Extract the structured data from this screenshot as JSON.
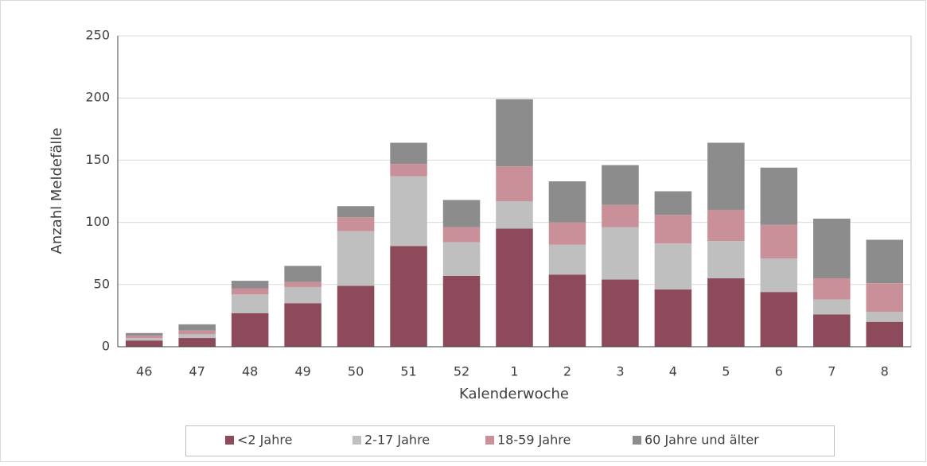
{
  "chart_data": {
    "type": "stacked_bar",
    "x_label": "Kalenderwoche",
    "y_label": "Anzahl Meldefälle",
    "categories": [
      "46",
      "47",
      "48",
      "49",
      "50",
      "51",
      "52",
      "1",
      "2",
      "3",
      "4",
      "5",
      "6",
      "7",
      "8"
    ],
    "series": [
      {
        "name": "<2 Jahre",
        "color": "#8c4a5a",
        "values": [
          5,
          7,
          27,
          35,
          49,
          81,
          57,
          95,
          58,
          54,
          46,
          55,
          44,
          26,
          20
        ]
      },
      {
        "name": "2-17 Jahre",
        "color": "#bfbfbf",
        "values": [
          2,
          3,
          15,
          13,
          44,
          56,
          27,
          22,
          24,
          42,
          37,
          30,
          27,
          12,
          8
        ]
      },
      {
        "name": "18-59 Jahre",
        "color": "#c99099",
        "values": [
          2,
          3,
          5,
          4,
          11,
          10,
          12,
          28,
          18,
          18,
          23,
          25,
          27,
          17,
          23
        ]
      },
      {
        "name": "60 Jahre und älter",
        "color": "#8c8c8c",
        "values": [
          2,
          5,
          6,
          13,
          9,
          17,
          22,
          54,
          33,
          32,
          19,
          54,
          46,
          48,
          35
        ]
      }
    ],
    "ylim": [
      0,
      250
    ],
    "yticks": [
      0,
      50,
      100,
      150,
      200,
      250
    ],
    "grid": true,
    "legend": "bottom"
  }
}
